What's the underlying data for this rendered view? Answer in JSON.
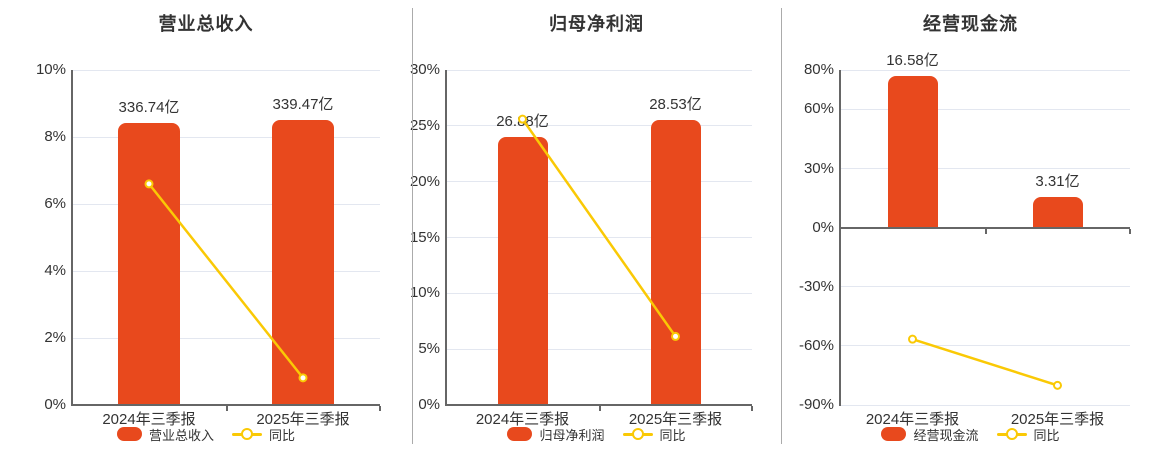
{
  "colors": {
    "bar": "#E8491D",
    "line": "#FAC905",
    "grid": "#E3E7F0",
    "axis": "#666666",
    "text": "#333333",
    "separator": "#ABABAB",
    "background": "#FFFFFF"
  },
  "chart_data": [
    {
      "type": "bar+line",
      "title": "营业总收入",
      "categories": [
        "2024年三季报",
        "2025年三季报"
      ],
      "bar_series": {
        "name": "营业总收入",
        "unit": "亿",
        "values": [
          336.74,
          339.47
        ],
        "value_labels": [
          "336.74亿",
          "339.47亿"
        ],
        "display_height_axis_units": [
          8.43,
          8.5
        ]
      },
      "line_series": {
        "name": "同比",
        "values_pct": [
          6.6,
          0.81
        ]
      },
      "y_axis": {
        "min": 0,
        "max": 10,
        "ticks": [
          10,
          8,
          6,
          4,
          2,
          0
        ],
        "suffix": "%"
      },
      "legend_position": "bottom",
      "grid": true
    },
    {
      "type": "bar+line",
      "title": "归母净利润",
      "categories": [
        "2024年三季报",
        "2025年三季报"
      ],
      "bar_series": {
        "name": "归母净利润",
        "unit": "亿",
        "values": [
          26.88,
          28.53
        ],
        "value_labels": [
          "26.88亿",
          "28.53亿"
        ],
        "display_height_axis_units": [
          24.0,
          25.5
        ]
      },
      "line_series": {
        "name": "同比",
        "values_pct": [
          25.6,
          6.14
        ]
      },
      "y_axis": {
        "min": 0,
        "max": 30,
        "ticks": [
          30,
          25,
          20,
          15,
          10,
          5,
          0
        ],
        "suffix": "%"
      },
      "legend_position": "bottom",
      "grid": true
    },
    {
      "type": "bar+line",
      "title": "经营现金流",
      "categories": [
        "2024年三季报",
        "2025年三季报"
      ],
      "bar_series": {
        "name": "经营现金流",
        "unit": "亿",
        "values": [
          16.58,
          3.31
        ],
        "value_labels": [
          "16.58亿",
          "3.31亿"
        ],
        "display_height_axis_units": [
          76.9,
          15.35
        ]
      },
      "line_series": {
        "name": "同比",
        "values_pct": [
          -56.6,
          -80.04
        ]
      },
      "y_axis": {
        "min": -90,
        "max": 80,
        "ticks": [
          80,
          60,
          30,
          0,
          -30,
          -60,
          -90
        ],
        "suffix": "%"
      },
      "legend_position": "bottom",
      "grid": true
    }
  ]
}
